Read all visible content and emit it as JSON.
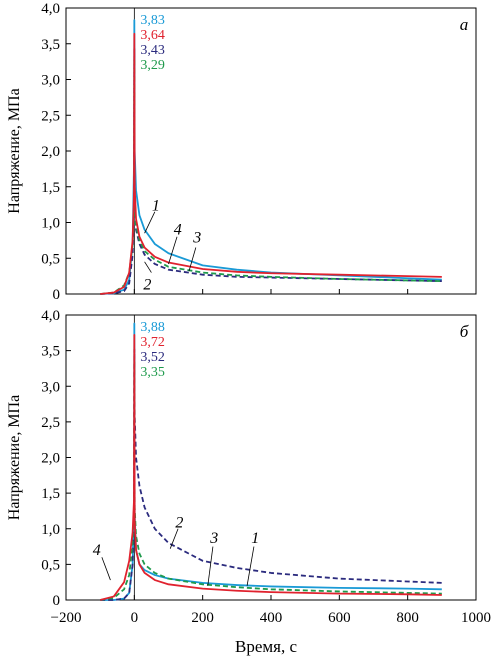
{
  "colors": {
    "cyan": "#1a9ad6",
    "red": "#e0222e",
    "navy": "#2b2b7e",
    "green": "#1f9a4c",
    "axis": "#000000"
  },
  "shared": {
    "xlabel": "Время, с",
    "ylabel": "Напряжение, МПа",
    "x_ticks": [
      "−200",
      "0",
      "200",
      "400",
      "600",
      "800",
      "1000"
    ],
    "y_ticks": [
      "0",
      "0,5",
      "1,0",
      "1,5",
      "2,0",
      "2,5",
      "3,0",
      "3,5",
      "4,0"
    ]
  },
  "chart_data": [
    {
      "type": "line",
      "panel_label": "а",
      "xlim": [
        -200,
        1000
      ],
      "ylim": [
        0,
        4.0
      ],
      "grid": false,
      "peak_labels": [
        "3,83",
        "3,64",
        "3,43",
        "3,29"
      ],
      "series": [
        {
          "label": "1",
          "color": "#1a9ad6",
          "dash": "solid",
          "peak": 3.83,
          "x": [
            -100,
            -60,
            -30,
            -15,
            -5,
            -1,
            0,
            1,
            5,
            15,
            30,
            60,
            100,
            200,
            300,
            400,
            600,
            800,
            900
          ],
          "y": [
            0.0,
            0.01,
            0.06,
            0.2,
            0.7,
            1.8,
            3.83,
            2.0,
            1.45,
            1.1,
            0.9,
            0.7,
            0.57,
            0.4,
            0.34,
            0.3,
            0.26,
            0.22,
            0.2
          ]
        },
        {
          "label": "2",
          "color": "#2b2b7e",
          "dash": "dashed",
          "peak": 3.43,
          "x": [
            -100,
            -60,
            -30,
            -15,
            -5,
            -1,
            0,
            1,
            5,
            15,
            30,
            60,
            100,
            200,
            300,
            400,
            600,
            800,
            900
          ],
          "y": [
            0.0,
            0.01,
            0.04,
            0.15,
            0.55,
            1.3,
            3.43,
            1.4,
            0.9,
            0.7,
            0.55,
            0.42,
            0.34,
            0.27,
            0.24,
            0.23,
            0.21,
            0.19,
            0.18
          ]
        },
        {
          "label": "3",
          "color": "#1f9a4c",
          "dash": "dashed",
          "peak": 3.29,
          "x": [
            -100,
            -60,
            -30,
            -15,
            -5,
            -1,
            0,
            1,
            5,
            15,
            30,
            60,
            100,
            200,
            300,
            400,
            600,
            800,
            900
          ],
          "y": [
            0.0,
            0.02,
            0.12,
            0.3,
            0.7,
            1.2,
            3.29,
            1.3,
            0.95,
            0.75,
            0.6,
            0.48,
            0.38,
            0.3,
            0.26,
            0.24,
            0.21,
            0.19,
            0.18
          ]
        },
        {
          "label": "4",
          "color": "#e0222e",
          "dash": "solid",
          "peak": 3.64,
          "x": [
            -100,
            -60,
            -30,
            -15,
            -5,
            -1,
            0,
            1,
            5,
            15,
            30,
            60,
            100,
            200,
            300,
            400,
            600,
            800,
            900
          ],
          "y": [
            0.0,
            0.02,
            0.1,
            0.3,
            0.75,
            1.4,
            3.64,
            1.5,
            1.05,
            0.8,
            0.65,
            0.52,
            0.44,
            0.35,
            0.31,
            0.29,
            0.27,
            0.25,
            0.24
          ]
        }
      ]
    },
    {
      "type": "line",
      "panel_label": "б",
      "xlim": [
        -200,
        1000
      ],
      "ylim": [
        0,
        4.0
      ],
      "grid": false,
      "peak_labels": [
        "3,88",
        "3,72",
        "3,52",
        "3,35"
      ],
      "series": [
        {
          "label": "1",
          "color": "#1a9ad6",
          "dash": "solid",
          "peak": 3.88,
          "x": [
            -100,
            -60,
            -30,
            -15,
            -5,
            -1,
            0,
            1,
            5,
            15,
            30,
            60,
            100,
            200,
            300,
            400,
            600,
            800,
            900
          ],
          "y": [
            0.0,
            0.0,
            0.02,
            0.1,
            0.5,
            1.3,
            3.88,
            1.2,
            0.7,
            0.5,
            0.42,
            0.35,
            0.3,
            0.24,
            0.21,
            0.19,
            0.17,
            0.16,
            0.15
          ]
        },
        {
          "label": "2",
          "color": "#2b2b7e",
          "dash": "dashed",
          "peak": 3.52,
          "x": [
            -100,
            -60,
            -30,
            -15,
            -5,
            -1,
            0,
            1,
            5,
            15,
            30,
            60,
            100,
            200,
            300,
            400,
            600,
            800,
            900
          ],
          "y": [
            0.0,
            0.0,
            0.02,
            0.1,
            0.5,
            1.3,
            3.52,
            2.6,
            2.0,
            1.6,
            1.3,
            1.0,
            0.8,
            0.55,
            0.45,
            0.38,
            0.3,
            0.26,
            0.24
          ]
        },
        {
          "label": "3",
          "color": "#1f9a4c",
          "dash": "dashed",
          "peak": 3.35,
          "x": [
            -100,
            -60,
            -30,
            -15,
            -5,
            -1,
            0,
            1,
            5,
            15,
            30,
            60,
            100,
            200,
            300,
            400,
            600,
            800,
            900
          ],
          "y": [
            0.0,
            0.03,
            0.15,
            0.35,
            0.8,
            1.3,
            3.35,
            1.3,
            0.9,
            0.65,
            0.5,
            0.38,
            0.3,
            0.22,
            0.18,
            0.15,
            0.12,
            0.1,
            0.09
          ]
        },
        {
          "label": "4",
          "color": "#e0222e",
          "dash": "solid",
          "peak": 3.72,
          "x": [
            -100,
            -60,
            -30,
            -15,
            -5,
            -1,
            0,
            1,
            5,
            15,
            30,
            60,
            100,
            200,
            300,
            400,
            600,
            800,
            900
          ],
          "y": [
            0.0,
            0.05,
            0.25,
            0.55,
            0.95,
            1.4,
            3.72,
            1.1,
            0.7,
            0.5,
            0.38,
            0.28,
            0.22,
            0.16,
            0.13,
            0.11,
            0.09,
            0.08,
            0.07
          ]
        }
      ]
    }
  ]
}
